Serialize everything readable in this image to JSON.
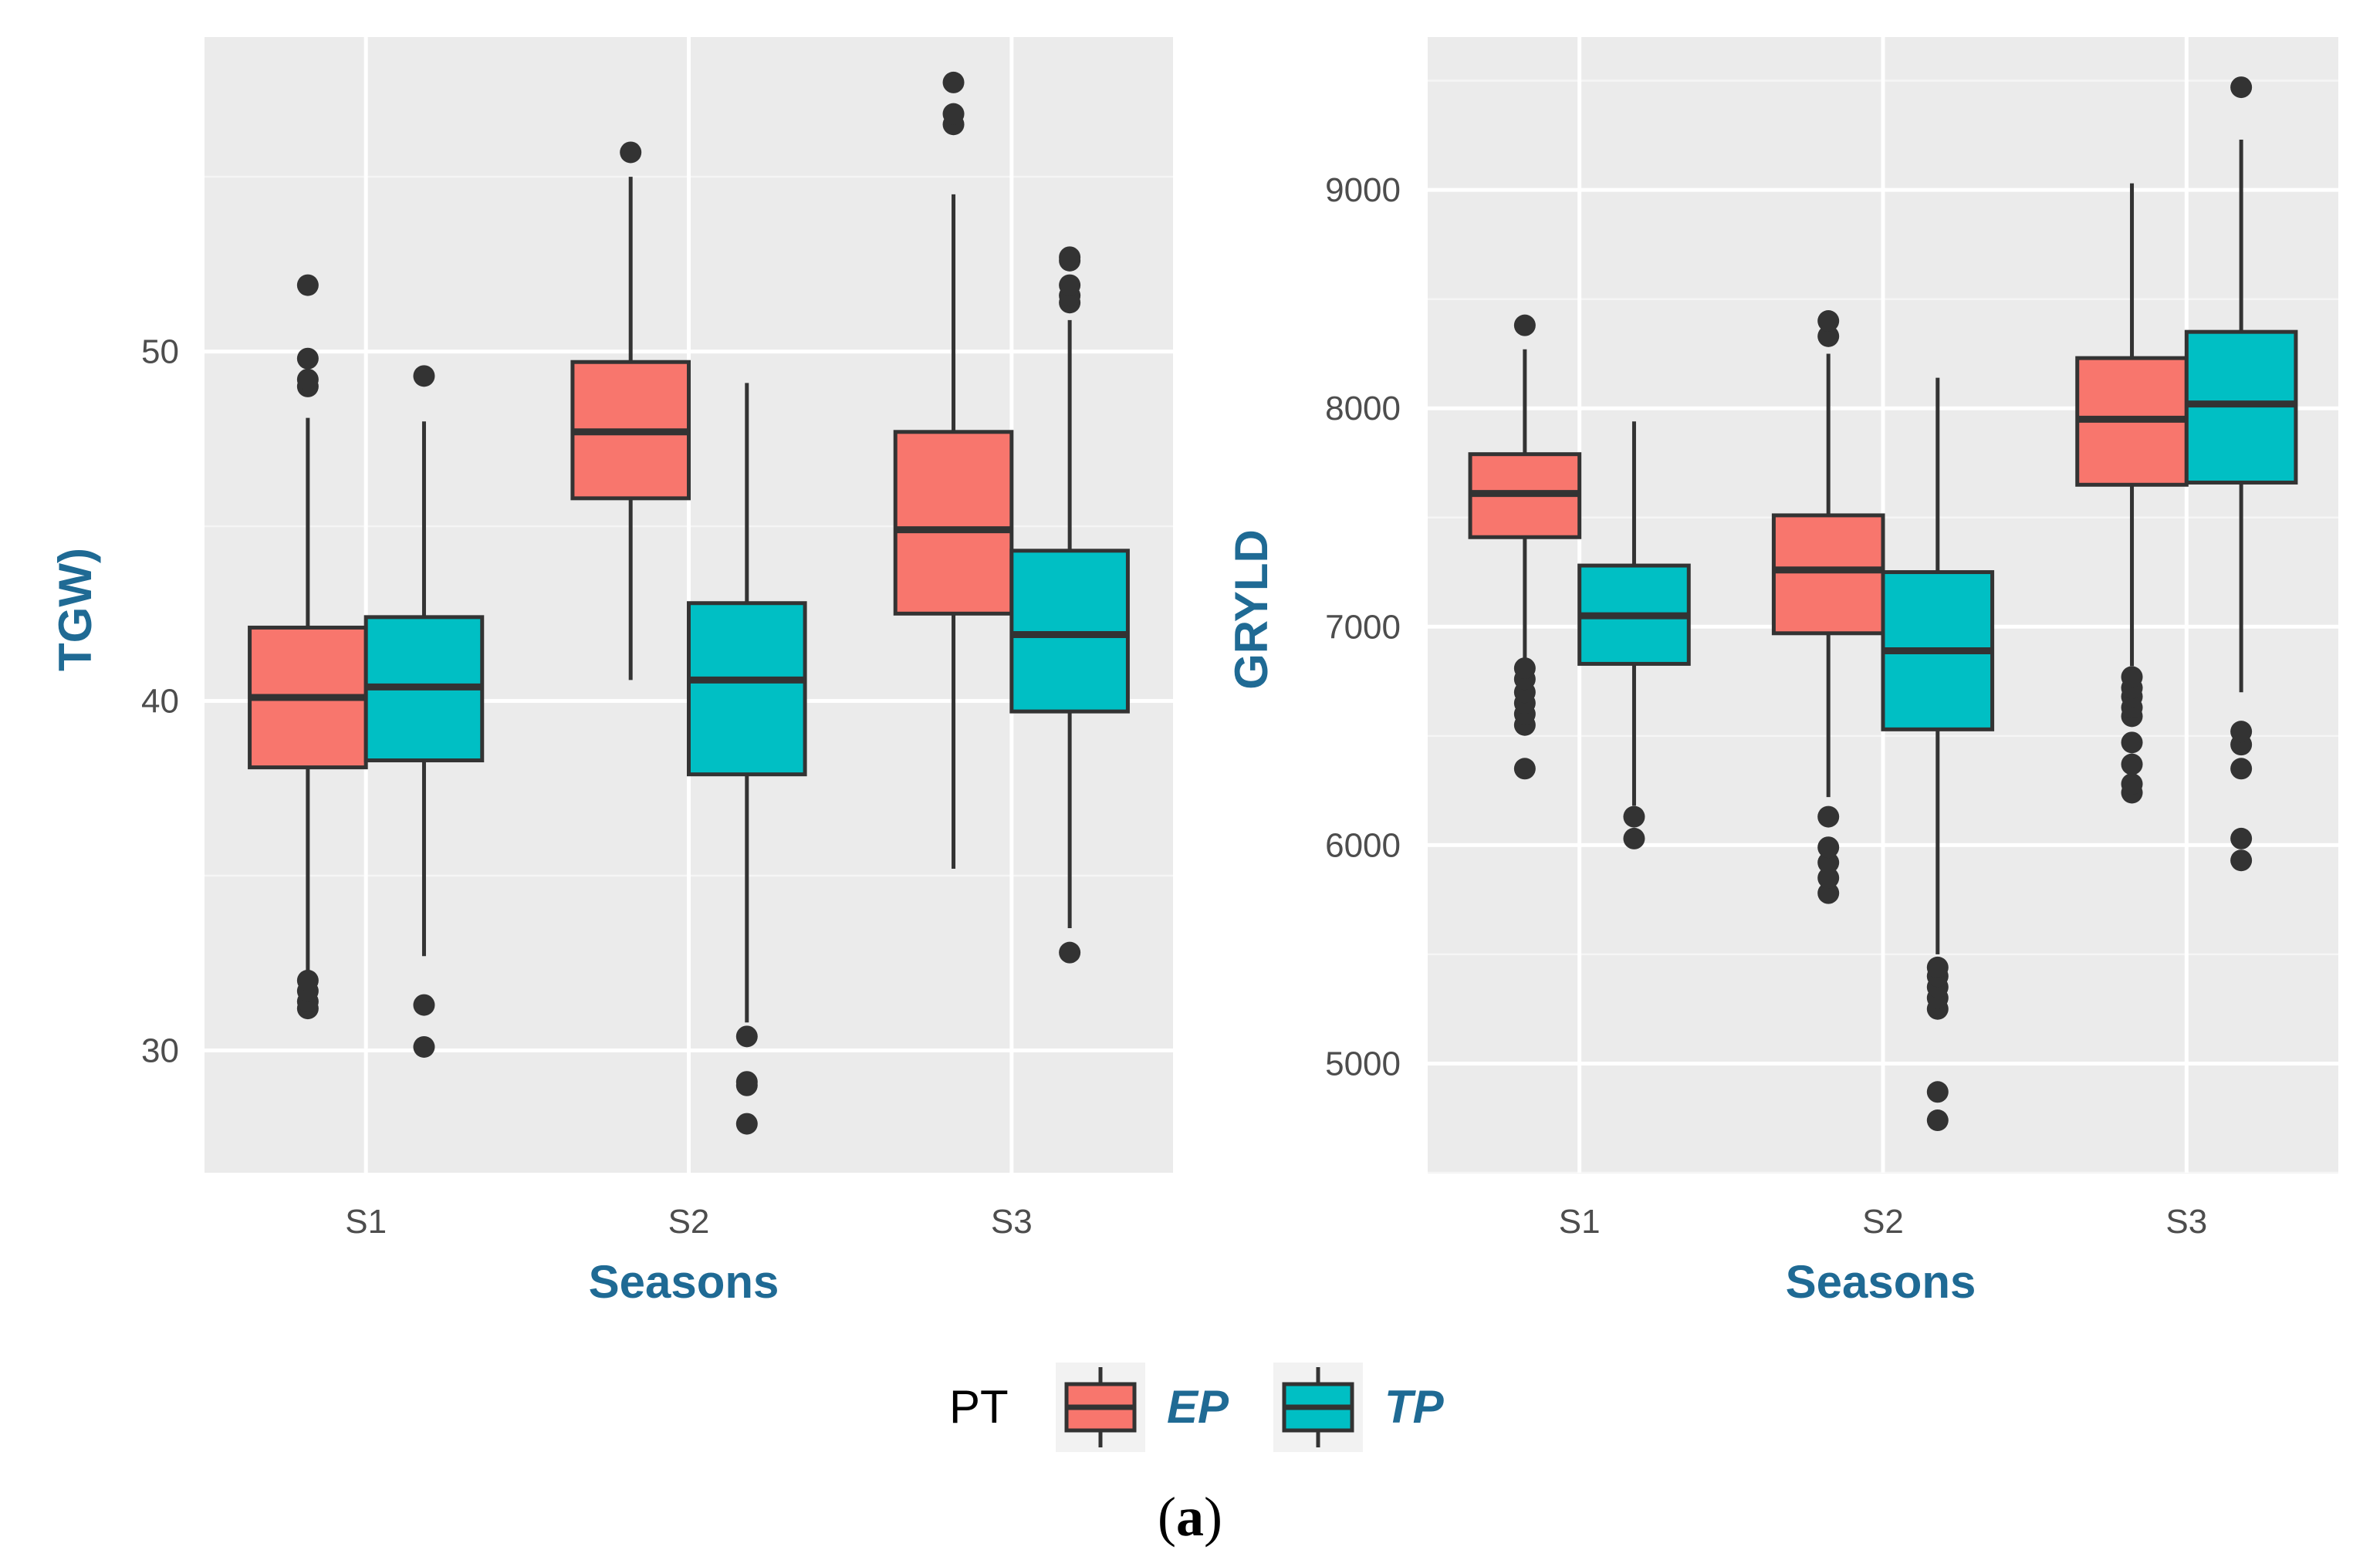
{
  "chart_data": [
    {
      "type": "box",
      "xlabel": "Seasons",
      "ylabel": "TGW)",
      "ylim": [
        26.5,
        59
      ],
      "yticks": [
        30,
        40,
        50
      ],
      "categories": [
        "S1",
        "S2",
        "S3"
      ],
      "series": [
        {
          "name": "EP",
          "boxes": [
            {
              "category": "S1",
              "whisker_low": 32.3,
              "q1": 38.1,
              "median": 40.1,
              "q3": 42.1,
              "whisker_high": 48.1,
              "outliers": [
                31.2,
                31.4,
                31.7,
                32.0,
                49.0,
                49.2,
                49.8,
                51.9
              ]
            },
            {
              "category": "S2",
              "whisker_low": 40.6,
              "q1": 45.8,
              "median": 47.7,
              "q3": 49.7,
              "whisker_high": 55.0,
              "outliers": [
                55.7
              ]
            },
            {
              "category": "S3",
              "whisker_low": 35.2,
              "q1": 42.5,
              "median": 44.9,
              "q3": 47.7,
              "whisker_high": 54.5,
              "outliers": [
                56.5,
                56.8,
                57.7
              ]
            }
          ]
        },
        {
          "name": "TP",
          "boxes": [
            {
              "category": "S1",
              "whisker_low": 32.7,
              "q1": 38.3,
              "median": 40.4,
              "q3": 42.4,
              "whisker_high": 48.0,
              "outliers": [
                30.1,
                31.3,
                49.3
              ]
            },
            {
              "category": "S2",
              "whisker_low": 30.8,
              "q1": 37.9,
              "median": 40.6,
              "q3": 42.8,
              "whisker_high": 49.1,
              "outliers": [
                27.9,
                29.0,
                29.1,
                30.4
              ]
            },
            {
              "category": "S3",
              "whisker_low": 33.5,
              "q1": 39.7,
              "median": 41.9,
              "q3": 44.3,
              "whisker_high": 50.9,
              "outliers": [
                32.8,
                51.4,
                51.6,
                51.9,
                52.6,
                52.7
              ]
            }
          ]
        }
      ]
    },
    {
      "type": "box",
      "xlabel": "Seasons",
      "ylabel": "GRYLD",
      "ylim": [
        4500,
        9700
      ],
      "yticks": [
        5000,
        6000,
        7000,
        8000,
        9000
      ],
      "categories": [
        "S1",
        "S2",
        "S3"
      ],
      "series": [
        {
          "name": "EP",
          "boxes": [
            {
              "category": "S1",
              "whisker_low": 6850,
              "q1": 7410,
              "median": 7610,
              "q3": 7790,
              "whisker_high": 8270,
              "outliers": [
                6350,
                6550,
                6600,
                6650,
                6700,
                6760,
                6810,
                8380
              ]
            },
            {
              "category": "S2",
              "whisker_low": 6220,
              "q1": 6970,
              "median": 7260,
              "q3": 7510,
              "whisker_high": 8250,
              "outliers": [
                5780,
                5850,
                5920,
                5990,
                6130,
                8330,
                8400
              ]
            },
            {
              "category": "S3",
              "whisker_low": 6820,
              "q1": 7650,
              "median": 7950,
              "q3": 8230,
              "whisker_high": 9030,
              "outliers": [
                6240,
                6280,
                6370,
                6470,
                6590,
                6630,
                6680,
                6720,
                6770
              ]
            }
          ]
        },
        {
          "name": "TP",
          "boxes": [
            {
              "category": "S1",
              "whisker_low": 6180,
              "q1": 6830,
              "median": 7050,
              "q3": 7280,
              "whisker_high": 7940,
              "outliers": [
                6030,
                6130
              ]
            },
            {
              "category": "S2",
              "whisker_low": 5500,
              "q1": 6530,
              "median": 6890,
              "q3": 7250,
              "whisker_high": 8140,
              "outliers": [
                4740,
                4870,
                5250,
                5300,
                5350,
                5400,
                5440
              ]
            },
            {
              "category": "S3",
              "whisker_low": 6700,
              "q1": 7660,
              "median": 8020,
              "q3": 8350,
              "whisker_high": 9230,
              "outliers": [
                5930,
                6030,
                6350,
                6460,
                6520,
                9470
              ]
            }
          ]
        }
      ]
    }
  ],
  "legend": {
    "title": "PT",
    "items": [
      {
        "label": "EP",
        "color": "#f8766d"
      },
      {
        "label": "TP",
        "color": "#00bfc4"
      }
    ]
  },
  "caption": {
    "open": "(",
    "label": "a",
    "close": ")"
  },
  "colors": {
    "panel_background": "#ebebeb",
    "grid_major": "#ffffff",
    "grid_minor": "#f5f5f5",
    "box_outline": "#333333",
    "outlier": "#333333",
    "axis_title": "#1f6a94",
    "tick_label": "#4d4d4d"
  }
}
